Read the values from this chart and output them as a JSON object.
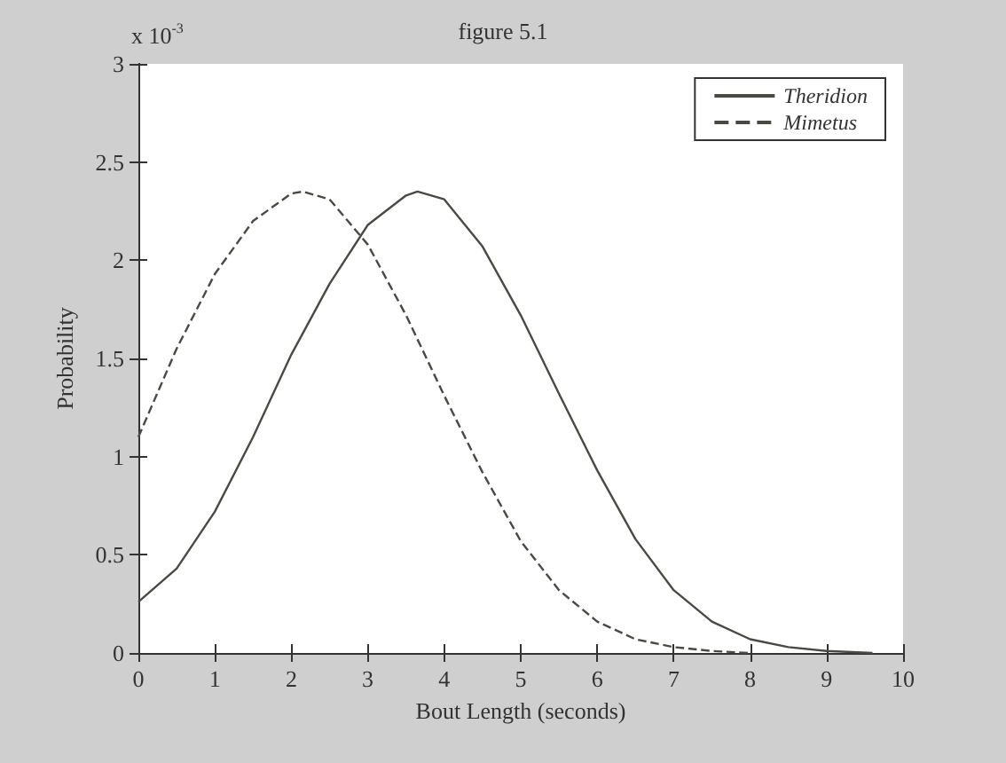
{
  "chart_data": {
    "type": "line",
    "title": "figure 5.1",
    "xlabel": "Bout Length (seconds)",
    "ylabel": "Probability",
    "annotations": [
      "x 10$^{-3}$"
    ],
    "xlim": [
      0,
      10
    ],
    "xticks": [
      0,
      1,
      2,
      3,
      4,
      5,
      6,
      7,
      8,
      9,
      10
    ],
    "ylim": [
      0,
      3
    ],
    "yticks": [
      0,
      0.5,
      1,
      1.5,
      2,
      2.5,
      3
    ],
    "grid": false,
    "legend": "top right",
    "marker": "none",
    "series": [
      {
        "name": "Theridion",
        "color": "#4a4a44",
        "line_style": "solid",
        "x": [
          0,
          0.5,
          1,
          1.5,
          2,
          2.5,
          3,
          3.5,
          3.65,
          4,
          4.5,
          5,
          5.5,
          6,
          6.5,
          7,
          7.5,
          8,
          8.5,
          9,
          9.6
        ],
        "values": [
          0.26,
          0.43,
          0.72,
          1.1,
          1.52,
          1.88,
          2.18,
          2.33,
          2.35,
          2.31,
          2.07,
          1.72,
          1.32,
          0.93,
          0.58,
          0.32,
          0.16,
          0.07,
          0.03,
          0.01,
          0
        ]
      },
      {
        "name": "Mimetus",
        "color": "#4a4a44",
        "line_style": "dashed",
        "x": [
          0,
          0.5,
          1,
          1.5,
          2,
          2.15,
          2.5,
          3,
          3.5,
          4,
          4.5,
          5,
          5.5,
          6,
          6.5,
          7,
          7.5,
          8
        ],
        "values": [
          1.1,
          1.55,
          1.93,
          2.2,
          2.34,
          2.35,
          2.31,
          2.08,
          1.72,
          1.31,
          0.92,
          0.57,
          0.32,
          0.16,
          0.07,
          0.03,
          0.01,
          0
        ]
      }
    ]
  }
}
